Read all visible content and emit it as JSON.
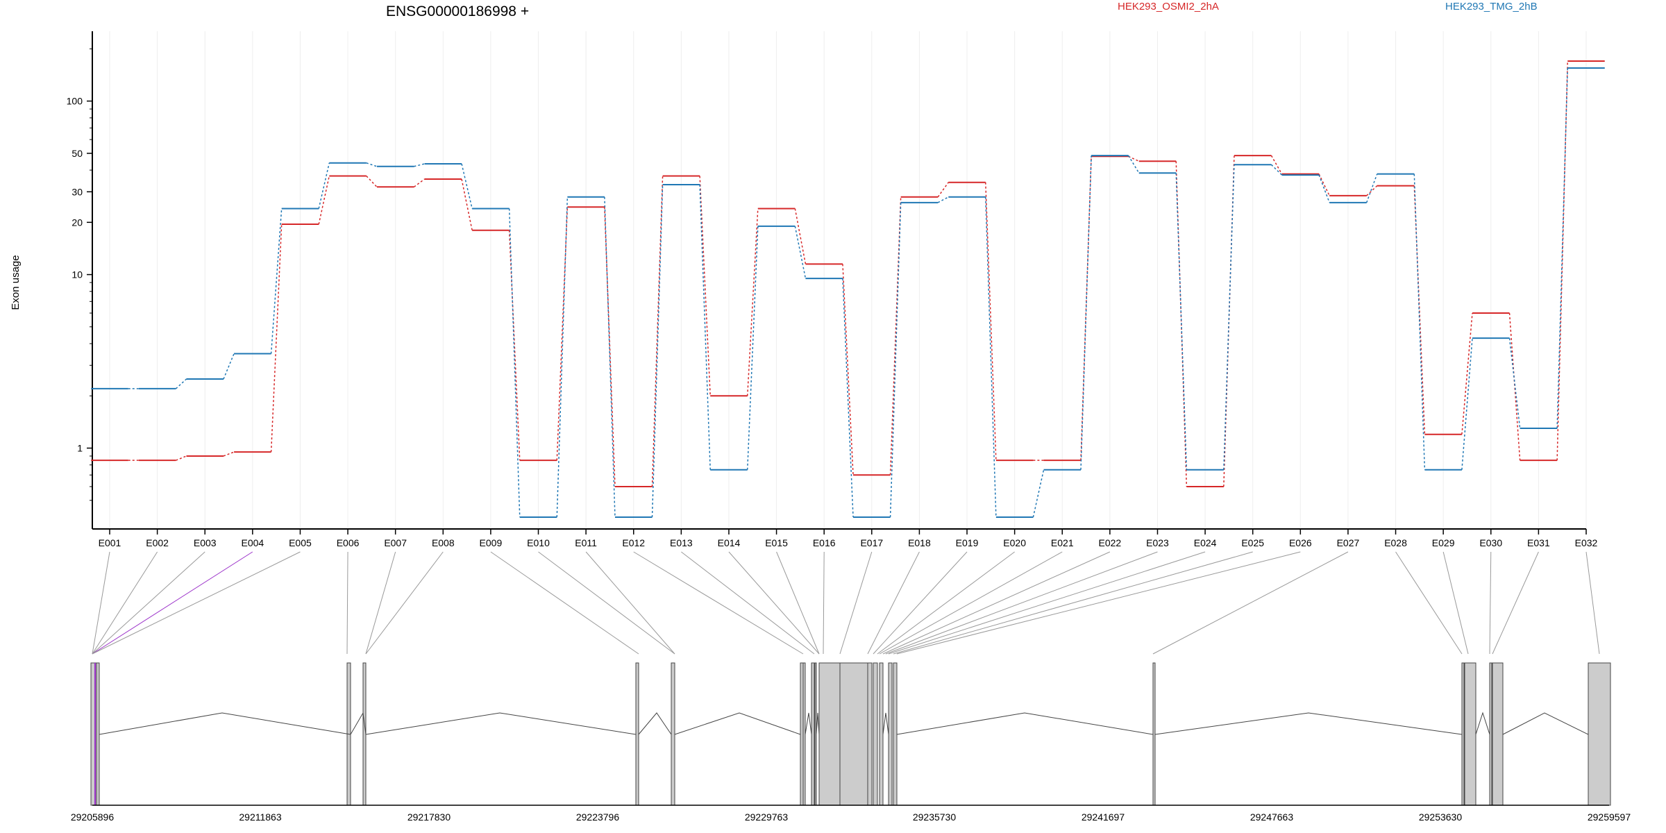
{
  "chart_data": {
    "type": "line",
    "title": "ENSG00000186998 +",
    "ylabel": "Exon usage",
    "y_scale": "log",
    "ylim": [
      0.4,
      220
    ],
    "y_ticks": [
      1,
      10,
      20,
      30,
      50,
      100
    ],
    "grid": "vertical",
    "legend_position": "top",
    "categories": [
      "E001",
      "E002",
      "E003",
      "E004",
      "E005",
      "E006",
      "E007",
      "E008",
      "E009",
      "E010",
      "E011",
      "E012",
      "E013",
      "E014",
      "E015",
      "E016",
      "E017",
      "E018",
      "E019",
      "E020",
      "E021",
      "E022",
      "E023",
      "E024",
      "E025",
      "E026",
      "E027",
      "E028",
      "E029",
      "E030",
      "E031",
      "E032"
    ],
    "series": [
      {
        "name": "HEK293_OSMI2_2hA",
        "color": "#d62728",
        "values": [
          0.85,
          0.85,
          0.9,
          0.95,
          19.5,
          37,
          32,
          35.5,
          18,
          0.85,
          24.5,
          0.6,
          37,
          2,
          24,
          11.5,
          0.7,
          28,
          34,
          0.85,
          0.85,
          48,
          45,
          0.6,
          48.5,
          38,
          28.5,
          32.5,
          1.2,
          6,
          0.85,
          170
        ]
      },
      {
        "name": "HEK293_TMG_2hB",
        "color": "#1f77b4",
        "values": [
          2.2,
          2.2,
          2.5,
          3.5,
          24,
          44,
          42,
          43.5,
          24,
          0.4,
          28,
          0.4,
          33,
          0.75,
          19,
          9.5,
          0.4,
          26,
          28,
          0.4,
          0.75,
          48.5,
          38.5,
          0.75,
          43,
          37.5,
          26,
          38,
          0.75,
          4.3,
          1.3,
          155
        ]
      }
    ],
    "gene_model": {
      "coordinate_ticks": [
        "29205896",
        "29211863",
        "29217830",
        "29223796",
        "29229763",
        "29235730",
        "29241697",
        "29247663",
        "29253630",
        "29259597"
      ],
      "exon_color": "#cccccc"
    }
  }
}
